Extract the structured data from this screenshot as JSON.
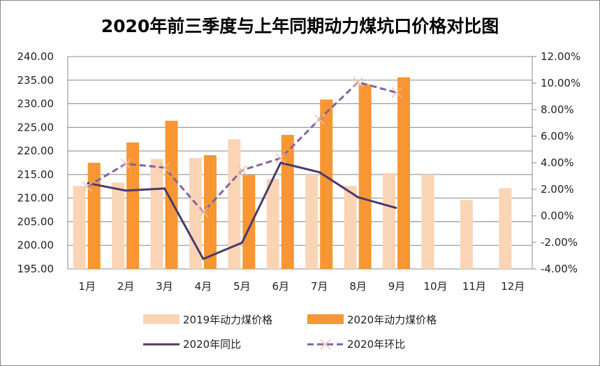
{
  "chart_data": {
    "type": "bar+line",
    "title": "2020年前三季度与上年同期动力煤坑口价格对比图",
    "categories": [
      "1月",
      "2月",
      "3月",
      "4月",
      "5月",
      "6月",
      "7月",
      "8月",
      "9月",
      "10月",
      "11月",
      "12月"
    ],
    "ylim_left": [
      195,
      240
    ],
    "yticks_left": [
      "195.00",
      "200.00",
      "205.00",
      "210.00",
      "215.00",
      "220.00",
      "225.00",
      "230.00",
      "235.00",
      "240.00"
    ],
    "ylim_right": [
      -4,
      12
    ],
    "yticks_right": [
      "-4.00%",
      "-2.00%",
      "0.00%",
      "2.00%",
      "4.00%",
      "6.00%",
      "8.00%",
      "10.00%",
      "12.00%"
    ],
    "grid": true,
    "legend_placement": "bottom",
    "series": [
      {
        "name": "2019年动力煤价格",
        "type": "bar",
        "axis": "left",
        "color": "#FAD5B5",
        "values": [
          212.6,
          213.3,
          218.3,
          218.5,
          222.5,
          214.1,
          215.0,
          212.6,
          215.3,
          215.0,
          209.6,
          212.1
        ]
      },
      {
        "name": "2020年动力煤价格",
        "type": "bar",
        "axis": "left",
        "color": "#F79633",
        "values": [
          217.5,
          221.8,
          226.4,
          219.1,
          214.9,
          223.4,
          230.9,
          234.1,
          235.6,
          null,
          null,
          null
        ]
      },
      {
        "name": "2020年同比",
        "type": "line",
        "axis": "right",
        "color": "#4B3A6B",
        "unit": "%",
        "values": [
          2.47,
          1.9,
          2.06,
          -3.25,
          -2.03,
          4.0,
          3.29,
          1.4,
          0.58,
          null,
          null,
          null
        ]
      },
      {
        "name": "2020年环比",
        "type": "line-dashed",
        "axis": "right",
        "color": "#8064A2",
        "marker_color": "#F5C0A8",
        "unit": "%",
        "values": [
          2.2,
          3.92,
          3.64,
          0.28,
          3.43,
          4.34,
          7.27,
          10.07,
          9.28,
          null,
          null,
          null
        ]
      }
    ]
  }
}
